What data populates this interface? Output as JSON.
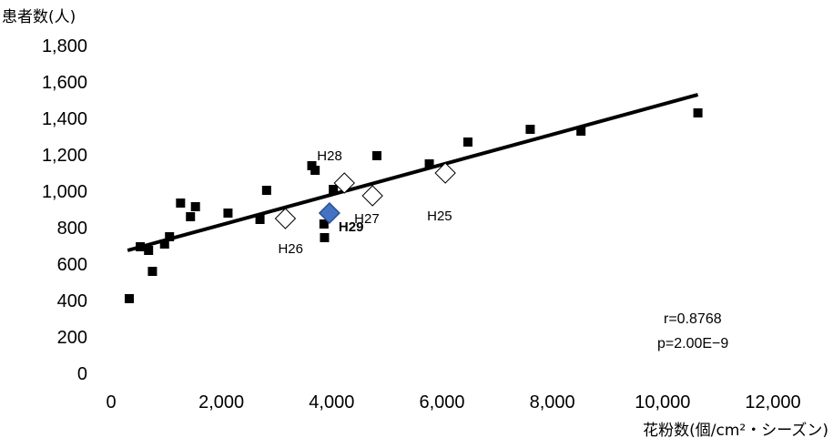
{
  "chart_data": {
    "type": "scatter",
    "title": "",
    "ylabel": "患者数(人)",
    "xlabel": "花粉数(個/cm²・シーズン)",
    "xlim": [
      0,
      12000
    ],
    "ylim": [
      0,
      1800
    ],
    "xticks": [
      0,
      2000,
      4000,
      6000,
      8000,
      10000,
      12000
    ],
    "xtick_labels": [
      "0",
      "2,000",
      "4,000",
      "6,000",
      "8,000",
      "10,000",
      "12,000"
    ],
    "yticks": [
      0,
      200,
      400,
      600,
      800,
      1000,
      1200,
      1400,
      1600,
      1800
    ],
    "ytick_labels": [
      "0",
      "200",
      "400",
      "600",
      "800",
      "1,000",
      "1,200",
      "1,400",
      "1,600",
      "1,800"
    ],
    "grid": false,
    "series": [
      {
        "marker": "square",
        "color": "#000000",
        "points": [
          {
            "x": 330,
            "y": 410
          },
          {
            "x": 530,
            "y": 695
          },
          {
            "x": 680,
            "y": 675
          },
          {
            "x": 750,
            "y": 560
          },
          {
            "x": 970,
            "y": 710
          },
          {
            "x": 1060,
            "y": 750
          },
          {
            "x": 1260,
            "y": 935
          },
          {
            "x": 1440,
            "y": 860
          },
          {
            "x": 1530,
            "y": 915
          },
          {
            "x": 2120,
            "y": 880
          },
          {
            "x": 2700,
            "y": 845
          },
          {
            "x": 2820,
            "y": 1005
          },
          {
            "x": 3640,
            "y": 1140
          },
          {
            "x": 3700,
            "y": 1115
          },
          {
            "x": 3860,
            "y": 820
          },
          {
            "x": 3870,
            "y": 745
          },
          {
            "x": 4030,
            "y": 1010
          },
          {
            "x": 4820,
            "y": 1195
          },
          {
            "x": 5770,
            "y": 1150
          },
          {
            "x": 6470,
            "y": 1270
          },
          {
            "x": 7600,
            "y": 1340
          },
          {
            "x": 8520,
            "y": 1330
          },
          {
            "x": 10640,
            "y": 1430
          }
        ]
      },
      {
        "marker": "diamond-open",
        "color": "#000000",
        "points": [
          {
            "x": 3160,
            "y": 850,
            "label": "H26"
          },
          {
            "x": 4230,
            "y": 1045,
            "label": "H28"
          },
          {
            "x": 4740,
            "y": 975,
            "label": "H27"
          },
          {
            "x": 6060,
            "y": 1100,
            "label": "H25"
          }
        ]
      },
      {
        "marker": "diamond-filled",
        "color": "#4472C4",
        "points": [
          {
            "x": 3960,
            "y": 880,
            "label": "H29"
          }
        ]
      }
    ],
    "trendline": {
      "x1": 300,
      "y1": 675,
      "x2": 10640,
      "y2": 1530
    },
    "annotations": {
      "r": "r=0.8768",
      "p": "p=2.00E−9"
    }
  }
}
